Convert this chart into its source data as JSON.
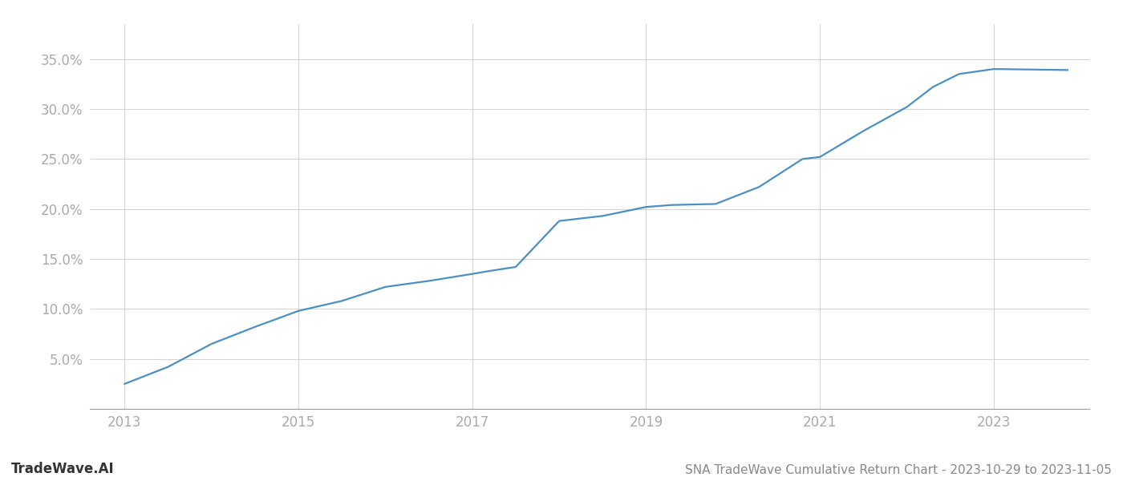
{
  "title": "SNA TradeWave Cumulative Return Chart - 2023-10-29 to 2023-11-05",
  "watermark": "TradeWave.AI",
  "line_color": "#4a90c4",
  "background_color": "#ffffff",
  "grid_color": "#cccccc",
  "x_years": [
    2013.0,
    2013.5,
    2014.0,
    2014.5,
    2015.0,
    2015.5,
    2016.0,
    2016.5,
    2017.0,
    2017.2,
    2017.5,
    2018.0,
    2018.5,
    2019.0,
    2019.3,
    2019.8,
    2020.3,
    2020.8,
    2021.0,
    2021.5,
    2022.0,
    2022.3,
    2022.6,
    2023.0,
    2023.85
  ],
  "y_values": [
    0.025,
    0.042,
    0.065,
    0.082,
    0.098,
    0.108,
    0.122,
    0.128,
    0.135,
    0.138,
    0.142,
    0.188,
    0.193,
    0.202,
    0.204,
    0.205,
    0.222,
    0.25,
    0.252,
    0.278,
    0.302,
    0.322,
    0.335,
    0.34,
    0.339
  ],
  "ylim": [
    0.0,
    0.385
  ],
  "xlim": [
    2012.6,
    2024.1
  ],
  "ytick_vals": [
    0.05,
    0.1,
    0.15,
    0.2,
    0.25,
    0.3,
    0.35
  ],
  "ytick_labels": [
    "5.0%",
    "10.0%",
    "15.0%",
    "20.0%",
    "25.0%",
    "30.0%",
    "35.0%"
  ],
  "xtick_vals": [
    2013,
    2015,
    2017,
    2019,
    2021,
    2023
  ],
  "xtick_labels": [
    "2013",
    "2015",
    "2017",
    "2019",
    "2021",
    "2023"
  ],
  "axis_label_color": "#aaaaaa",
  "title_color": "#888888",
  "watermark_color": "#333333",
  "title_fontsize": 11,
  "watermark_fontsize": 12,
  "tick_fontsize": 12,
  "line_width": 1.6
}
